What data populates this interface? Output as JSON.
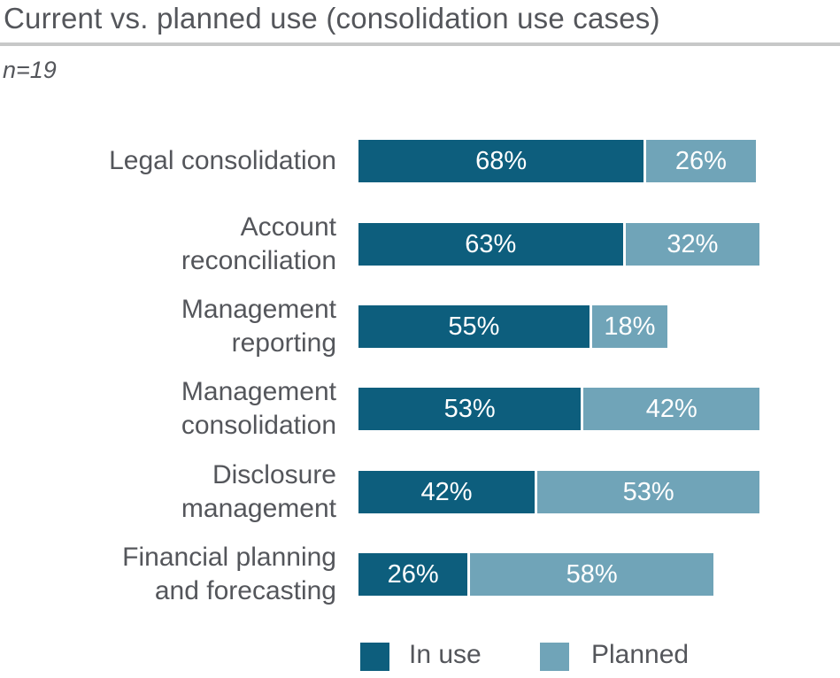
{
  "title": "Current vs. planned use (consolidation use cases)",
  "sample_note": "n=19",
  "colors": {
    "in_use": "#0D5E7D",
    "planned": "#70A4B8",
    "text": "#54565B",
    "divider": "#C7C8C8",
    "value_text": "#FFFFFF",
    "background": "#FFFFFF"
  },
  "legend": [
    {
      "label": "In use",
      "color": "#0D5E7D"
    },
    {
      "label": "Planned",
      "color": "#70A4B8"
    }
  ],
  "chart_data": {
    "type": "bar",
    "orientation": "horizontal",
    "stacked": true,
    "title": "Current vs. planned use (consolidation use cases)",
    "sample_size": 19,
    "categories": [
      "Legal consolidation",
      "Account reconciliation",
      "Management reporting",
      "Management consolidation",
      "Disclosure management",
      "Financial planning and forecasting"
    ],
    "categories_display": [
      "Legal consolidation",
      "Account\nreconciliation",
      "Management\nreporting",
      "Management\nconsolidation",
      "Disclosure\nmanagement",
      "Financial planning\nand forecasting"
    ],
    "series": [
      {
        "name": "In use",
        "values": [
          68,
          63,
          55,
          53,
          42,
          26
        ]
      },
      {
        "name": "Planned",
        "values": [
          26,
          32,
          18,
          42,
          53,
          58
        ]
      }
    ],
    "value_suffix": "%",
    "xlim": [
      0,
      100
    ],
    "grid": false,
    "legend_position": "bottom"
  }
}
